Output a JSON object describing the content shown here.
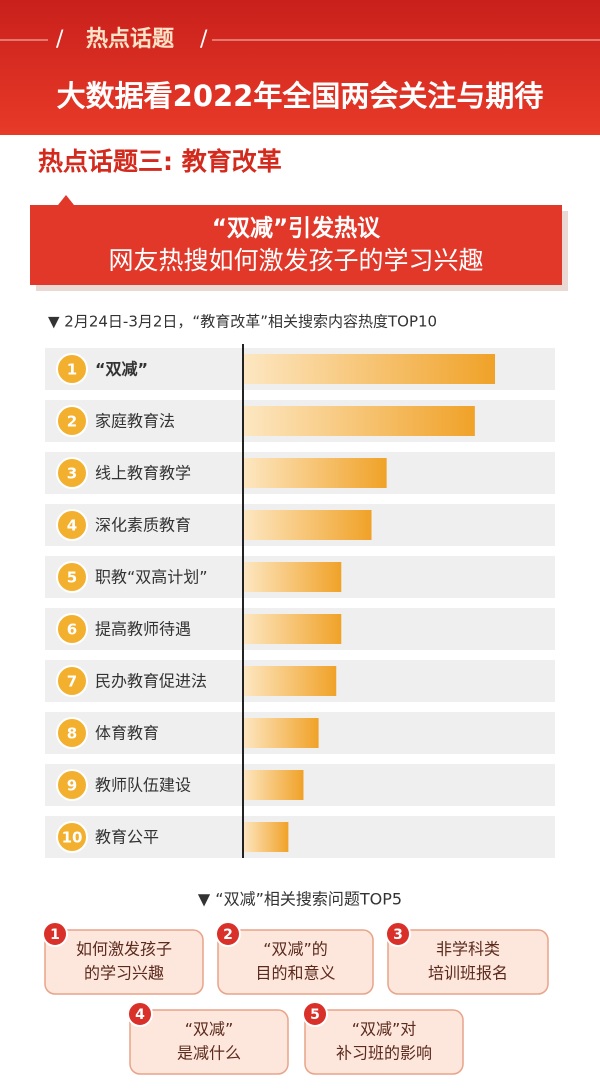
{
  "header": {
    "tag": "热点话题",
    "title": "大数据看2022年全国两会关注与期待"
  },
  "section": "热点话题三: 教育改革",
  "banner": {
    "line1": "“双减”引发热议",
    "line2": "网友热搜如何激发孩子的学习兴趣"
  },
  "chart_data": {
    "type": "bar",
    "orientation": "horizontal",
    "title": "▼ 2月24日-3月2日，“教育改革”相关搜索内容热度TOP10",
    "ranks": [
      "1",
      "2",
      "3",
      "4",
      "5",
      "6",
      "7",
      "8",
      "9",
      "10"
    ],
    "categories": [
      "“双减”",
      "家庭教育法",
      "线上教育教学",
      "深化素质教育",
      "职教“双高计划”",
      "提高教师待遇",
      "民办教育促进法",
      "体育教育",
      "教师队伍建设",
      "教育公平"
    ],
    "values": [
      100,
      92,
      57,
      51,
      39,
      39,
      37,
      30,
      24,
      18
    ],
    "color": "#f0a830"
  },
  "questions": {
    "title": "▼ “双减”相关搜索问题TOP5",
    "items": [
      {
        "rank": "1",
        "lines": [
          "如何激发孩子",
          "的学习兴趣"
        ]
      },
      {
        "rank": "2",
        "lines": [
          "“双减”的",
          "目的和意义"
        ]
      },
      {
        "rank": "3",
        "lines": [
          "非学科类",
          "培训班报名"
        ]
      },
      {
        "rank": "4",
        "lines": [
          "“双减”",
          "是减什么"
        ]
      },
      {
        "rank": "5",
        "lines": [
          "“双减”对",
          "补习班的影响"
        ]
      }
    ]
  }
}
